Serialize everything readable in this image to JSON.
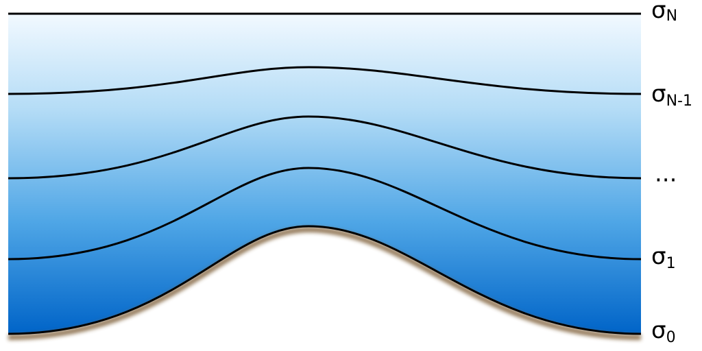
{
  "labels": [
    {
      "symbol": "σ",
      "subscript": "N"
    },
    {
      "symbol": "σ",
      "subscript": "N-1"
    },
    {
      "text": "..."
    },
    {
      "symbol": "σ",
      "subscript": "1"
    },
    {
      "symbol": "σ",
      "subscript": "0"
    }
  ]
}
